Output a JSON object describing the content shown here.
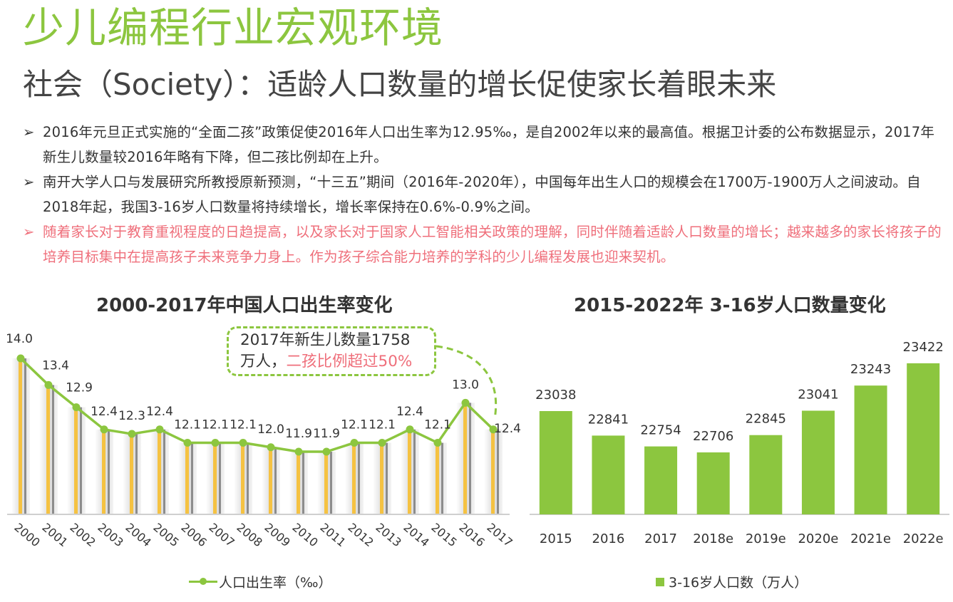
{
  "header": {
    "title": "少儿编程行业宏观环境",
    "subtitle": "社会（Society）：适龄人口数量的增长促使家长着眼未来"
  },
  "bullets": [
    {
      "text": "2016年元旦正式实施的“全面二孩”政策促使2016年人口出生率为12.95‰，是自2002年以来的最高值。根据卫计委的公布数据显示，2017年新生儿数量较2016年略有下降，但二孩比例却在上升。",
      "highlight": false
    },
    {
      "text": "南开大学人口与发展研究所教授原新预测，“十三五”期间（2016年-2020年），中国每年出生人口的规模会在1700万-1900万人之间波动。自2018年起，我国3-16岁人口数量将持续增长，增长率保持在0.6%-0.9%之间。",
      "highlight": true
    },
    {
      "text": "随着家长对于教育重视程度的日趋提高，以及家长对于国家人工智能相关政策的理解，同时伴随着适龄人口数量的增长；越来越多的家长将孩子的培养目标集中在提高孩子未来竞争力身上。作为孩子综合能力培养的学科的少儿编程发展也迎来契机。",
      "highlight": true
    }
  ],
  "bullet_marker": "➢",
  "callout": {
    "line1": "2017年新生儿数量1758",
    "line2_prefix": "万人，",
    "line2_highlight": "二孩比例超过50%"
  },
  "colors": {
    "accent": "#8cc63f",
    "highlight": "#ef6f7b",
    "bar_stripe": "#f5c242"
  },
  "chart_data": [
    {
      "type": "line",
      "title": "2000-2017年中国人口出生率变化",
      "categories": [
        "2000",
        "2001",
        "2002",
        "2003",
        "2004",
        "2005",
        "2006",
        "2007",
        "2008",
        "2009",
        "2010",
        "2011",
        "2012",
        "2013",
        "2014",
        "2015",
        "2016",
        "2017"
      ],
      "series": [
        {
          "name": "人口出生率（‰）",
          "values": [
            14.0,
            13.4,
            12.9,
            12.4,
            12.3,
            12.4,
            12.1,
            12.1,
            12.1,
            12.0,
            11.9,
            11.9,
            12.1,
            12.1,
            12.4,
            12.1,
            13.0,
            12.4
          ]
        }
      ],
      "data_labels": [
        "14.0",
        "13.4",
        "12.9",
        "12.4",
        "12.3",
        "12.4",
        "12.1",
        "12.1",
        "12.1",
        "12.0",
        "11.9",
        "11.9",
        "12.1",
        "12.1",
        "12.4",
        "12.1",
        "13.0",
        "12.4"
      ],
      "legend": "bottom",
      "grid": false
    },
    {
      "type": "bar",
      "title": "2015-2022年 3-16岁人口数量变化",
      "categories": [
        "2015",
        "2016",
        "2017",
        "2018e",
        "2019e",
        "2020e",
        "2021e",
        "2022e"
      ],
      "series": [
        {
          "name": "3-16岁人口数（万人）",
          "values": [
            23038,
            22841,
            22754,
            22706,
            22845,
            23041,
            23243,
            23422
          ]
        }
      ],
      "legend": "bottom",
      "grid": false
    }
  ]
}
